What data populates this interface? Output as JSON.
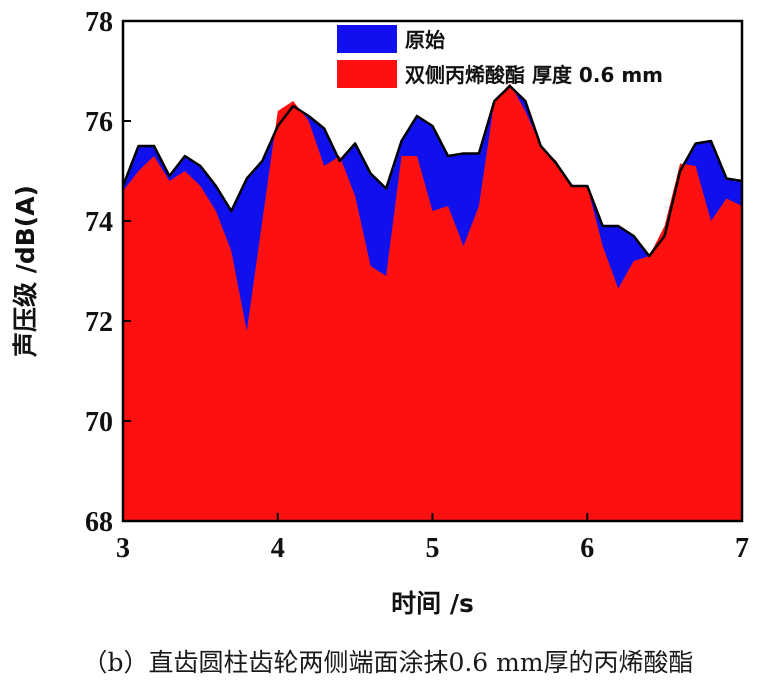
{
  "chart_data": {
    "type": "area",
    "xlabel": "时间 /s",
    "ylabel": "声压级 /dB(A)",
    "xlim": [
      3,
      7
    ],
    "ylim": [
      68,
      78
    ],
    "xticks": [
      3,
      4,
      5,
      6,
      7
    ],
    "yticks": [
      68,
      70,
      72,
      74,
      76,
      78
    ],
    "grid": false,
    "legend_position": "top-right",
    "series": [
      {
        "name": "原始",
        "color": "#1010ee",
        "x": [
          3.0,
          3.1,
          3.2,
          3.3,
          3.4,
          3.5,
          3.6,
          3.7,
          3.8,
          3.9,
          4.0,
          4.1,
          4.2,
          4.3,
          4.4,
          4.5,
          4.6,
          4.7,
          4.8,
          4.9,
          5.0,
          5.1,
          5.2,
          5.3,
          5.4,
          5.5,
          5.6,
          5.7,
          5.8,
          5.9,
          6.0,
          6.1,
          6.2,
          6.3,
          6.4,
          6.5,
          6.6,
          6.7,
          6.8,
          6.9,
          7.0
        ],
        "values": [
          74.7,
          75.5,
          75.5,
          74.9,
          75.3,
          75.1,
          74.7,
          74.2,
          74.85,
          75.2,
          75.9,
          76.3,
          76.1,
          75.85,
          75.2,
          75.55,
          74.95,
          74.65,
          75.6,
          76.1,
          75.9,
          75.3,
          75.35,
          75.35,
          76.4,
          76.7,
          76.4,
          75.5,
          75.15,
          74.7,
          74.7,
          73.9,
          73.9,
          73.7,
          73.3,
          73.7,
          75.0,
          75.55,
          75.6,
          74.85,
          74.8
        ]
      },
      {
        "name": "双侧丙烯酸酯  厚度 0.6 mm",
        "color": "#ff1010",
        "x": [
          3.0,
          3.1,
          3.2,
          3.3,
          3.4,
          3.5,
          3.6,
          3.7,
          3.8,
          3.9,
          4.0,
          4.1,
          4.2,
          4.3,
          4.4,
          4.5,
          4.6,
          4.7,
          4.8,
          4.9,
          5.0,
          5.1,
          5.2,
          5.3,
          5.4,
          5.5,
          5.6,
          5.7,
          5.8,
          5.9,
          6.0,
          6.1,
          6.2,
          6.3,
          6.4,
          6.5,
          6.6,
          6.7,
          6.8,
          6.9,
          7.0
        ],
        "values": [
          74.6,
          75.0,
          75.3,
          74.8,
          75.0,
          74.7,
          74.2,
          73.4,
          71.8,
          74.0,
          76.2,
          76.4,
          76.0,
          75.1,
          75.3,
          74.5,
          73.1,
          72.9,
          75.3,
          75.3,
          74.2,
          74.3,
          73.5,
          74.3,
          76.4,
          76.75,
          76.2,
          75.5,
          75.2,
          74.7,
          74.7,
          73.5,
          72.65,
          73.2,
          73.3,
          73.9,
          75.15,
          75.1,
          74.0,
          74.45,
          74.3
        ]
      }
    ]
  },
  "caption": "（b）直齿圆柱齿轮两侧端面涂抹0.6 mm厚的丙烯酸酯"
}
